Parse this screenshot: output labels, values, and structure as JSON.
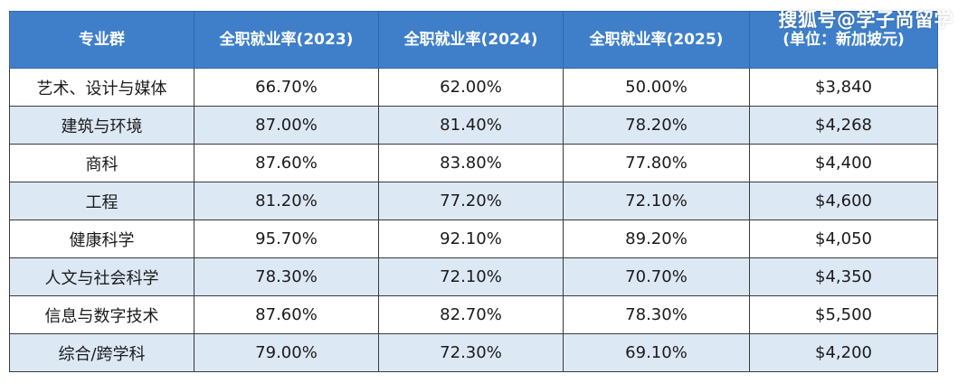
{
  "watermark": "搜狐号@学子尚留学",
  "table": {
    "headers": [
      "专业群",
      "全职就业率(2023)",
      "全职就业率(2024)",
      "全职就业率(2025)"
    ],
    "last_header_line1": "",
    "last_header_line2": "(单位：新加坡元)",
    "rows": [
      [
        "艺术、设计与媒体",
        "66.70%",
        "62.00%",
        "50.00%",
        "$3,840"
      ],
      [
        "建筑与环境",
        "87.00%",
        "81.40%",
        "78.20%",
        "$4,268"
      ],
      [
        "商科",
        "87.60%",
        "83.80%",
        "77.80%",
        "$4,400"
      ],
      [
        "工程",
        "81.20%",
        "77.20%",
        "72.10%",
        "$4,600"
      ],
      [
        "健康科学",
        "95.70%",
        "92.10%",
        "89.20%",
        "$4,050"
      ],
      [
        "人文与社会科学",
        "78.30%",
        "72.10%",
        "70.70%",
        "$4,350"
      ],
      [
        "信息与数字技术",
        "87.60%",
        "82.70%",
        "78.30%",
        "$5,500"
      ],
      [
        "综合/跨学科",
        "79.00%",
        "72.30%",
        "69.10%",
        "$4,200"
      ]
    ]
  }
}
